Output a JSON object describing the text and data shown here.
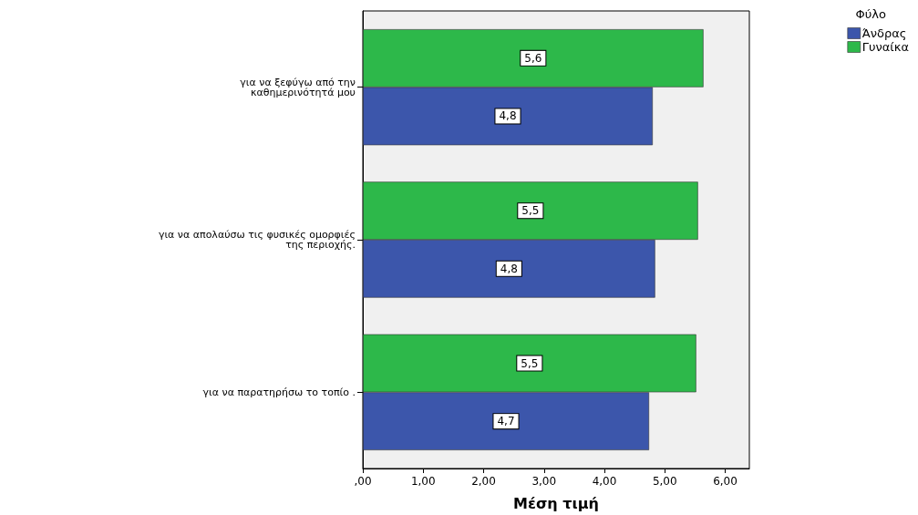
{
  "chart_data": {
    "type": "bar",
    "orientation": "horizontal",
    "xlabel": "Μέση τιμή",
    "legend_title": "Φύλο",
    "legend": "top right",
    "grid": false,
    "categories": [
      "για να ξεφύγω από την\nκαθημερινότητά μου",
      "για να απολαύσω τις φυσικές ομορφιές\nτης περιοχής.",
      "για να παρατηρήσω το τοπίο ."
    ],
    "series": [
      {
        "name": "Άνδρας",
        "color": "#3c56ab",
        "values": [
          4.8,
          4.84,
          4.74
        ],
        "value_labels": [
          "4,8",
          "4,8",
          "4,7"
        ]
      },
      {
        "name": "Γυναίκα",
        "color": "#2db84a",
        "values": [
          5.64,
          5.55,
          5.52
        ],
        "value_labels": [
          "5,6",
          "5,5",
          "5,5"
        ]
      }
    ],
    "xlim": [
      0,
      6.4
    ],
    "xticks": [
      {
        "value": 0,
        "label": ",00"
      },
      {
        "value": 1,
        "label": "1,00"
      },
      {
        "value": 2,
        "label": "2,00"
      },
      {
        "value": 3,
        "label": "3,00"
      },
      {
        "value": 4,
        "label": "4,00"
      },
      {
        "value": 5,
        "label": "5,00"
      },
      {
        "value": 6,
        "label": "6,00"
      }
    ]
  }
}
